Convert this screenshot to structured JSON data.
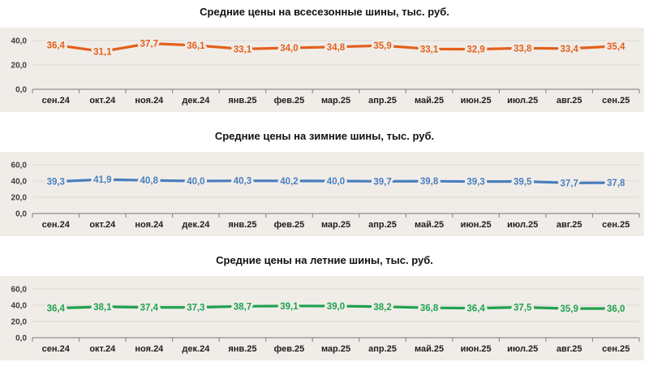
{
  "page": {
    "background": "#ffffff",
    "panel_background": "#f0ede9"
  },
  "chart_data": [
    {
      "type": "line",
      "title": "Средние цены на всесезонные шины, тыс. руб.",
      "color": "#e4601b",
      "legend_position": "none",
      "grid": true,
      "categories": [
        "сен.24",
        "окт.24",
        "ноя.24",
        "дек.24",
        "янв.25",
        "фев.25",
        "мар.25",
        "апр.25",
        "май.25",
        "июн.25",
        "июл.25",
        "авг.25",
        "сен.25"
      ],
      "values": [
        36.4,
        31.1,
        37.7,
        36.1,
        33.1,
        34.0,
        34.8,
        35.9,
        33.1,
        32.9,
        33.8,
        33.4,
        35.4
      ],
      "labels": [
        "36,4",
        "31,1",
        "37,7",
        "36,1",
        "33,1",
        "34,0",
        "34,8",
        "35,9",
        "33,1",
        "32,9",
        "33,8",
        "33,4",
        "35,4"
      ],
      "xlabel": "",
      "ylabel": "тыс. руб.",
      "yticks": [
        0,
        20,
        40
      ],
      "ytick_labels": [
        "0,0",
        "20,0",
        "40,0"
      ],
      "ylim": [
        0,
        50
      ]
    },
    {
      "type": "line",
      "title": "Средние цены на зимние шины, тыс. руб.",
      "color": "#4a7ebd",
      "legend_position": "none",
      "grid": true,
      "categories": [
        "сен.24",
        "окт.24",
        "ноя.24",
        "дек.24",
        "янв.25",
        "фев.25",
        "мар.25",
        "апр.25",
        "май.25",
        "июн.25",
        "июл.25",
        "авг.25",
        "сен.25"
      ],
      "values": [
        39.3,
        41.9,
        40.8,
        40.0,
        40.3,
        40.2,
        40.0,
        39.7,
        39.8,
        39.3,
        39.5,
        37.7,
        37.8
      ],
      "labels": [
        "39,3",
        "41,9",
        "40,8",
        "40,0",
        "40,3",
        "40,2",
        "40,0",
        "39,7",
        "39,8",
        "39,3",
        "39,5",
        "37,7",
        "37,8"
      ],
      "xlabel": "",
      "ylabel": "тыс. руб.",
      "yticks": [
        0,
        20,
        40,
        60
      ],
      "ytick_labels": [
        "0,0",
        "20,0",
        "40,0",
        "60,0"
      ],
      "ylim": [
        0,
        65
      ]
    },
    {
      "type": "line",
      "title": "Средние цены на летние шины, тыс. руб.",
      "color": "#1fa24e",
      "legend_position": "none",
      "grid": true,
      "categories": [
        "сен.24",
        "окт.24",
        "ноя.24",
        "дек.24",
        "янв.25",
        "фев.25",
        "мар.25",
        "апр.25",
        "май.25",
        "июн.25",
        "июл.25",
        "авг.25",
        "сен.25"
      ],
      "values": [
        36.4,
        38.1,
        37.4,
        37.3,
        38.7,
        39.1,
        39.0,
        38.2,
        36.8,
        36.4,
        37.5,
        35.9,
        36.0
      ],
      "labels": [
        "36,4",
        "38,1",
        "37,4",
        "37,3",
        "38,7",
        "39,1",
        "39,0",
        "38,2",
        "36,8",
        "36,4",
        "37,5",
        "35,9",
        "36,0"
      ],
      "xlabel": "",
      "ylabel": "тыс. руб.",
      "yticks": [
        0,
        20,
        40,
        60
      ],
      "ytick_labels": [
        "0,0",
        "20,0",
        "40,0",
        "60,0"
      ],
      "ylim": [
        0,
        65
      ]
    }
  ]
}
